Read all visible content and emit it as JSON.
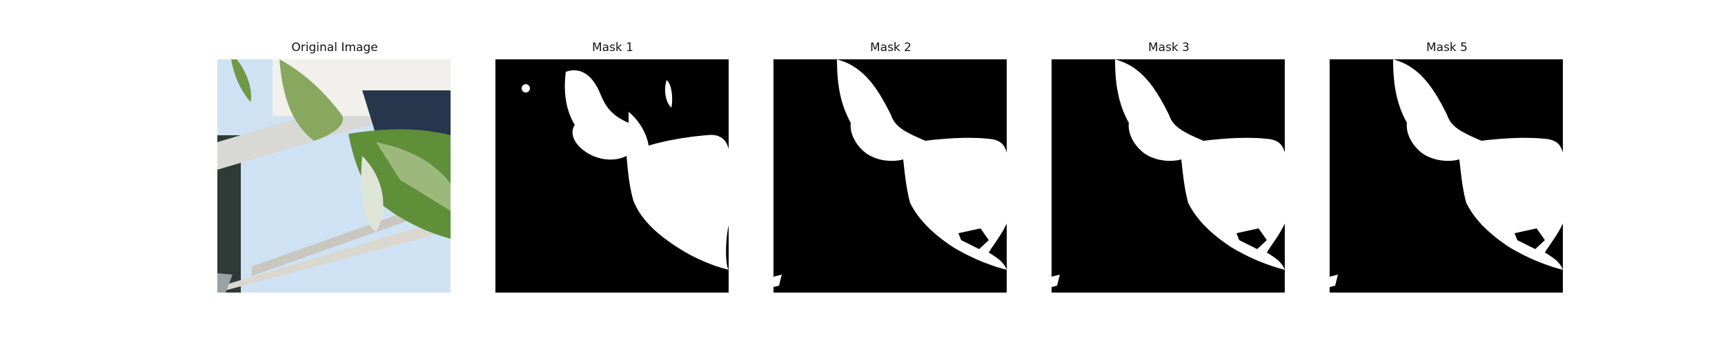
{
  "panels": [
    {
      "title": "Original Image",
      "kind": "photo"
    },
    {
      "title": "Mask 1",
      "kind": "mask"
    },
    {
      "title": "Mask 2",
      "kind": "mask"
    },
    {
      "title": "Mask 3",
      "kind": "mask"
    },
    {
      "title": "Mask 5",
      "kind": "mask"
    }
  ],
  "colors": {
    "background": "#ffffff",
    "mask_background": "#000000",
    "mask_foreground": "#ffffff",
    "leaf": "#7aa34a",
    "sky": "#cfe2f4",
    "frame": "#2f3a36",
    "pot": "#f1f0ec"
  }
}
